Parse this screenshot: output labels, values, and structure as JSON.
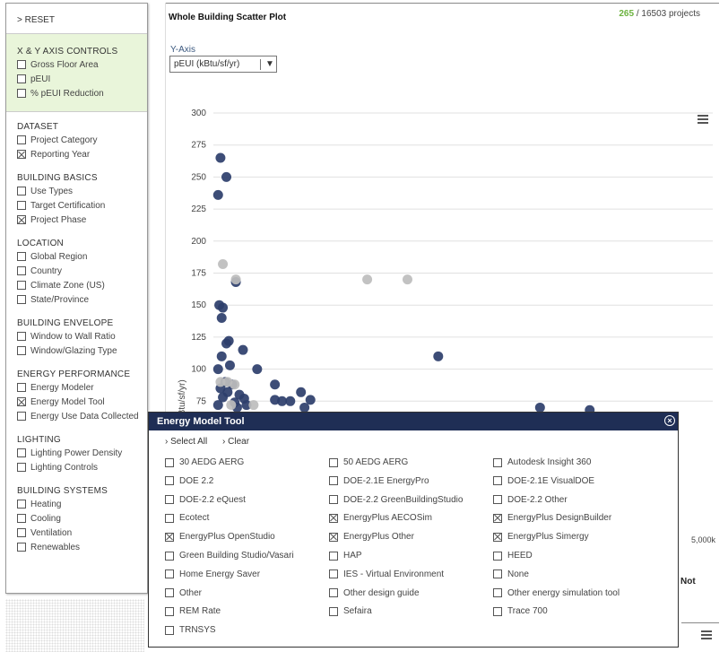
{
  "sidebar": {
    "reset": "> RESET",
    "xy_title": "X & Y AXIS CONTROLS",
    "xy_items": [
      {
        "label": "Gross Floor Area",
        "checked": false
      },
      {
        "label": "pEUI",
        "checked": false
      },
      {
        "label": "% pEUI Reduction",
        "checked": false
      }
    ],
    "groups": [
      {
        "title": "DATASET",
        "items": [
          {
            "label": "Project Category",
            "checked": false
          },
          {
            "label": "Reporting Year",
            "checked": true
          }
        ]
      },
      {
        "title": "BUILDING BASICS",
        "items": [
          {
            "label": "Use Types",
            "checked": false
          },
          {
            "label": "Target Certification",
            "checked": false
          },
          {
            "label": "Project Phase",
            "checked": true
          }
        ]
      },
      {
        "title": "LOCATION",
        "items": [
          {
            "label": "Global Region",
            "checked": false
          },
          {
            "label": "Country",
            "checked": false
          },
          {
            "label": "Climate Zone (US)",
            "checked": false
          },
          {
            "label": "State/Province",
            "checked": false
          }
        ]
      },
      {
        "title": "BUILDING ENVELOPE",
        "items": [
          {
            "label": "Window to Wall Ratio",
            "checked": false
          },
          {
            "label": "Window/Glazing Type",
            "checked": false
          }
        ]
      },
      {
        "title": "ENERGY PERFORMANCE",
        "items": [
          {
            "label": "Energy Modeler",
            "checked": false
          },
          {
            "label": "Energy Model Tool",
            "checked": true
          },
          {
            "label": "Energy Use Data Collected",
            "checked": false
          }
        ]
      },
      {
        "title": "LIGHTING",
        "items": [
          {
            "label": "Lighting Power Density",
            "checked": false
          },
          {
            "label": "Lighting Controls",
            "checked": false
          }
        ]
      },
      {
        "title": "BUILDING SYSTEMS",
        "items": [
          {
            "label": "Heating",
            "checked": false
          },
          {
            "label": "Cooling",
            "checked": false
          },
          {
            "label": "Ventilation",
            "checked": false
          },
          {
            "label": "Renewables",
            "checked": false
          }
        ]
      }
    ]
  },
  "main": {
    "title": "Whole Building Scatter Plot",
    "count_shown": "265",
    "count_total": "/ 16503 projects",
    "y_axis_label": "Y-Axis",
    "y_select_value": "pEUI (kBtu/sf/yr)",
    "x_tick_partial": "5,000k",
    "partial_label": "Not"
  },
  "modal": {
    "title": "Energy Model Tool",
    "close_glyph": "×",
    "select_all": "› Select All",
    "clear": "› Clear",
    "options": [
      {
        "label": "30 AEDG AERG",
        "checked": false
      },
      {
        "label": "50 AEDG AERG",
        "checked": false
      },
      {
        "label": "Autodesk Insight 360",
        "checked": false
      },
      {
        "label": "DOE 2.2",
        "checked": false
      },
      {
        "label": "DOE-2.1E EnergyPro",
        "checked": false
      },
      {
        "label": "DOE-2.1E VisualDOE",
        "checked": false
      },
      {
        "label": "DOE-2.2 eQuest",
        "checked": false
      },
      {
        "label": "DOE-2.2 GreenBuildingStudio",
        "checked": false
      },
      {
        "label": "DOE-2.2 Other",
        "checked": false
      },
      {
        "label": "Ecotect",
        "checked": false
      },
      {
        "label": "EnergyPlus AECOSim",
        "checked": true
      },
      {
        "label": "EnergyPlus DesignBuilder",
        "checked": true
      },
      {
        "label": "EnergyPlus OpenStudio",
        "checked": true
      },
      {
        "label": "EnergyPlus Other",
        "checked": true
      },
      {
        "label": "EnergyPlus Simergy",
        "checked": true
      },
      {
        "label": "Green Building Studio/Vasari",
        "checked": false
      },
      {
        "label": "HAP",
        "checked": false
      },
      {
        "label": "HEED",
        "checked": false
      },
      {
        "label": "Home Energy Saver",
        "checked": false
      },
      {
        "label": "IES - Virtual Environment",
        "checked": false
      },
      {
        "label": "None",
        "checked": false
      },
      {
        "label": "Other",
        "checked": false
      },
      {
        "label": "Other design guide",
        "checked": false
      },
      {
        "label": "Other energy simulation tool",
        "checked": false
      },
      {
        "label": "REM Rate",
        "checked": false
      },
      {
        "label": "Sefaira",
        "checked": false
      },
      {
        "label": "Trace 700",
        "checked": false
      },
      {
        "label": "TRNSYS",
        "checked": false
      }
    ]
  },
  "colors": {
    "dark_point": "#2c3e6b",
    "light_point": "#bdbdbd",
    "accent_green": "#6cb33f",
    "modal_header": "#1f2e55"
  },
  "chart_data": {
    "type": "scatter",
    "ylabel": "pEUI (kBtu/sf/yr)",
    "yticks": [
      "300",
      "275",
      "250",
      "225",
      "200",
      "175",
      "150",
      "125",
      "100",
      "75"
    ],
    "ylim": [
      50,
      300
    ],
    "grid": true,
    "series": [
      {
        "color_key": "dark",
        "points": [
          [
            0.3,
            265
          ],
          [
            0.55,
            250
          ],
          [
            0.2,
            236
          ],
          [
            0.95,
            168
          ],
          [
            0.25,
            150
          ],
          [
            0.4,
            148
          ],
          [
            0.35,
            140
          ],
          [
            0.65,
            122
          ],
          [
            0.55,
            120
          ],
          [
            1.25,
            115
          ],
          [
            0.35,
            110
          ],
          [
            0.7,
            103
          ],
          [
            0.2,
            100
          ],
          [
            1.85,
            100
          ],
          [
            0.5,
            90
          ],
          [
            0.8,
            88
          ],
          [
            2.6,
            88
          ],
          [
            0.3,
            85
          ],
          [
            0.6,
            82
          ],
          [
            1.1,
            80
          ],
          [
            1.3,
            77
          ],
          [
            2.6,
            76
          ],
          [
            2.9,
            75
          ],
          [
            3.25,
            75
          ],
          [
            3.7,
            82
          ],
          [
            4.1,
            76
          ],
          [
            3.85,
            70
          ],
          [
            1.4,
            72
          ],
          [
            9.5,
            110
          ],
          [
            13.8,
            70
          ],
          [
            15.9,
            68
          ],
          [
            0.4,
            78
          ],
          [
            0.9,
            74
          ],
          [
            0.2,
            72
          ],
          [
            1.0,
            70
          ]
        ]
      },
      {
        "color_key": "light",
        "points": [
          [
            0.4,
            182
          ],
          [
            0.95,
            170
          ],
          [
            6.5,
            170
          ],
          [
            8.2,
            170
          ],
          [
            0.3,
            90
          ],
          [
            0.6,
            90
          ],
          [
            0.9,
            88
          ],
          [
            0.75,
            72
          ],
          [
            1.7,
            72
          ]
        ]
      }
    ]
  }
}
